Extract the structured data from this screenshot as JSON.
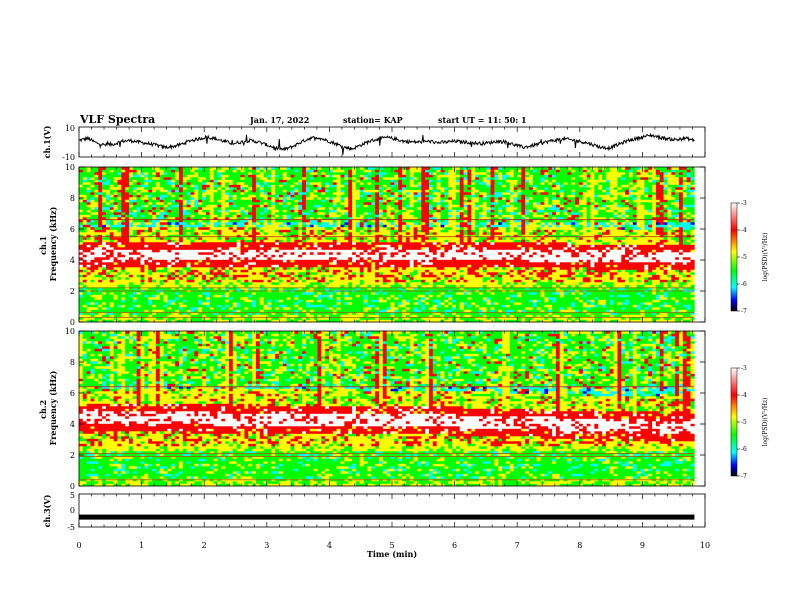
{
  "header": {
    "title": "VLF Spectra",
    "date": "Jan. 17, 2022",
    "station": "station= KAP",
    "start": "start UT =  11: 50: 1"
  },
  "chart_data": {
    "type": "heatmap",
    "x_axis": {
      "label": "Time (min)",
      "range": [
        0,
        10
      ],
      "ticks": [
        0,
        1,
        2,
        3,
        4,
        5,
        6,
        7,
        8,
        9,
        10
      ],
      "data_end": 9.83
    },
    "panels": [
      {
        "id": "ch1_waveform",
        "type": "line",
        "ylabel": "ch.1(V)",
        "ylim": [
          -10,
          10
        ],
        "yticks": [
          "10",
          "-10"
        ],
        "waveform": [
          1.0,
          2.5,
          -0.5,
          -2.0,
          -1.5,
          0.5,
          1.0,
          0.0,
          -1.0,
          -2.0,
          -3.5,
          -3.0,
          -1.5,
          1.0,
          2.0,
          3.5,
          2.0,
          0.5,
          -1.0,
          0.0,
          1.0,
          0.0,
          -2.0,
          -4.0,
          -5.0,
          -3.0,
          0.0,
          2.5,
          3.0,
          1.0,
          -1.0,
          -3.5,
          -4.5,
          -2.0,
          0.5,
          2.0,
          3.0,
          2.0,
          0.5,
          0.0,
          0.0,
          0.5,
          -0.5,
          0.0,
          0.5,
          0.0,
          -0.5,
          -1.0,
          -0.5,
          0.5,
          0.0,
          -2.0,
          -3.5,
          -2.5,
          -1.0,
          0.5,
          1.5,
          2.0,
          1.0,
          0.0,
          -1.5,
          -3.5,
          -4.0,
          -2.0,
          0.5,
          2.0,
          3.5,
          4.5,
          3.0,
          2.0,
          1.5,
          2.5,
          1.0
        ],
        "waveform_x_range": [
          0,
          9.83
        ]
      },
      {
        "id": "ch1_spectrogram",
        "type": "heatmap",
        "ylabel": "ch.1 Frequency (kHz)",
        "ylabel_lines": [
          "ch.1",
          "Frequency (kHz)"
        ],
        "ylim": [
          0,
          10
        ],
        "yticks": [
          0,
          2,
          4,
          6,
          8,
          10
        ],
        "band_centers": [
          {
            "t": 0,
            "f": 4.3
          },
          {
            "t": 5,
            "f": 4.4
          },
          {
            "t": 9.83,
            "f": 4.2
          }
        ],
        "band_width_khz": 1.6,
        "lines_khz": [
          6.6,
          5.5,
          2.2,
          2.0,
          0.6,
          0.3
        ],
        "colorbar": {
          "label": "log(PSD)(V²/Hz)",
          "range": [
            -7,
            -3
          ],
          "ticks": [
            "-3",
            "-4",
            "-5",
            "-6",
            "-7"
          ]
        }
      },
      {
        "id": "ch2_spectrogram",
        "type": "heatmap",
        "ylabel": "ch.2 Frequency (kHz)",
        "ylabel_lines": [
          "ch.2",
          "Frequency (kHz)"
        ],
        "ylim": [
          0,
          10
        ],
        "yticks": [
          0,
          2,
          4,
          6,
          8,
          10
        ],
        "band_centers": [
          {
            "t": 0,
            "f": 4.4
          },
          {
            "t": 5,
            "f": 4.3
          },
          {
            "t": 9.83,
            "f": 3.8
          }
        ],
        "band_width_khz": 1.8,
        "lines_khz": [
          6.4,
          2.1,
          1.9,
          0.4
        ],
        "colorbar": {
          "label": "log(PSD)(V²/Hz)",
          "range": [
            -7,
            -3
          ],
          "ticks": [
            "-3",
            "-4",
            "-5",
            "-6",
            "-7"
          ]
        }
      },
      {
        "id": "ch3_waveform",
        "type": "line",
        "ylabel": "ch.3(V)",
        "ylim": [
          -5,
          5
        ],
        "yticks": [
          "5",
          "0",
          "-5"
        ],
        "level_v": -2.0,
        "level_x_range": [
          0,
          9.83
        ]
      }
    ],
    "colormap": [
      "#ffffff",
      "#ff0000",
      "#ffff00",
      "#00ff00",
      "#00ffff",
      "#0000ff",
      "#000000"
    ]
  }
}
